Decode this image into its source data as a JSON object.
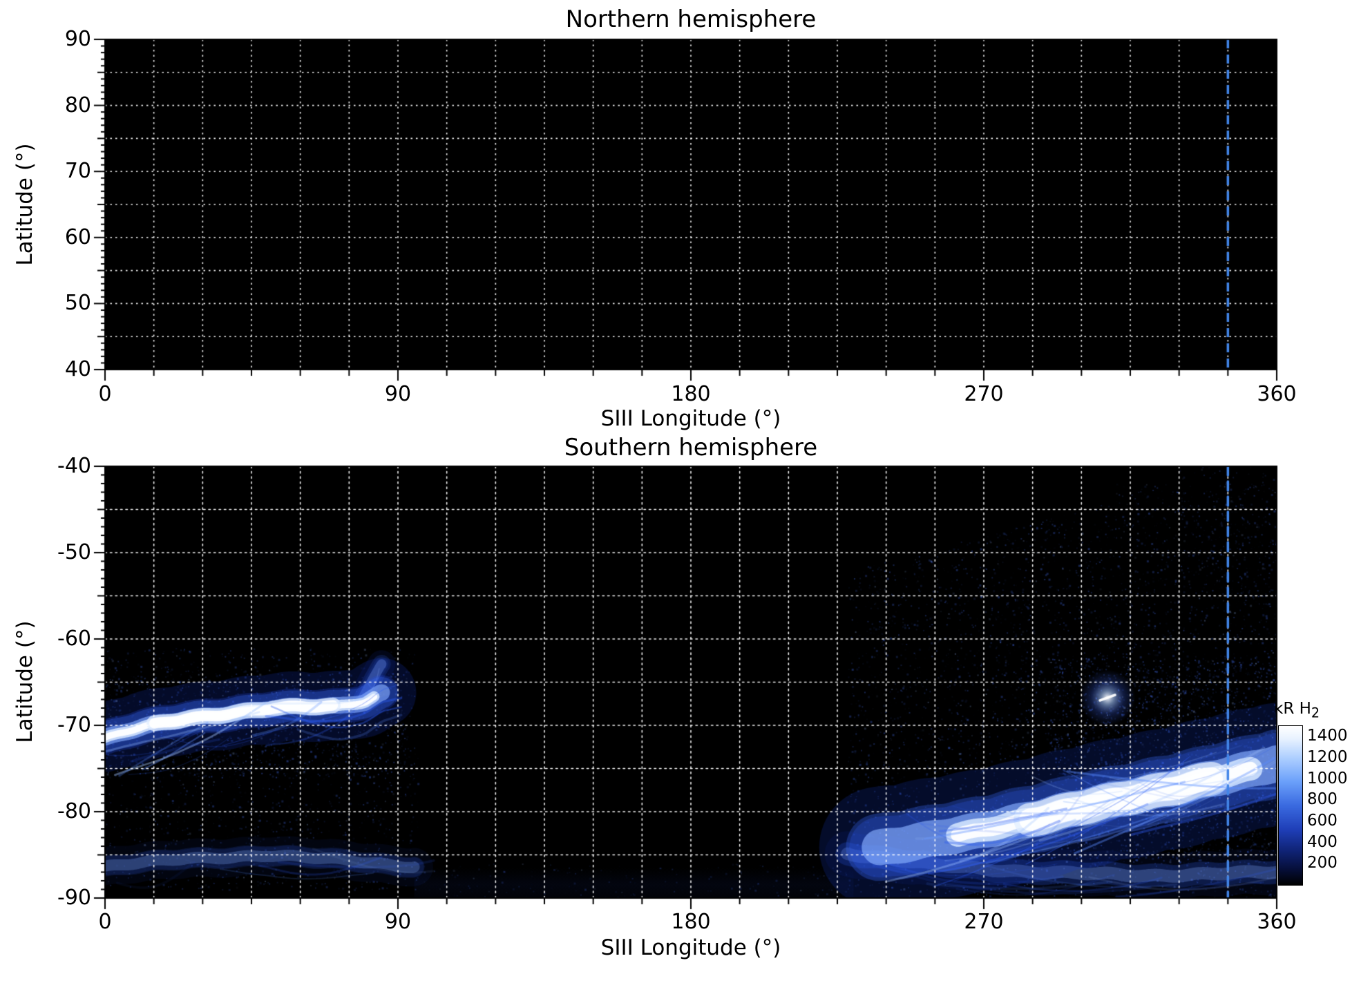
{
  "figure": {
    "background": "#ffffff",
    "plot_background": "#000000",
    "grid_color": "#ffffff",
    "reference_line_color": "#4285e8"
  },
  "chart_data": [
    {
      "type": "heatmap",
      "panel": "northern",
      "title": "Northern hemisphere",
      "xlabel": "SIII Longitude (°)",
      "ylabel": "Latitude (°)",
      "xlim": [
        0,
        360
      ],
      "ylim_top_to_bottom": [
        90,
        40
      ],
      "xticks": [
        0,
        90,
        180,
        270,
        360
      ],
      "yticks": [
        90,
        80,
        70,
        60,
        50,
        40
      ],
      "grid": {
        "x_step_deg": 15,
        "y_step_deg": 5,
        "style": "dotted",
        "minor_tick_deg_x": 15,
        "minor_tick_deg_y": 1
      },
      "reference_line_x": 345,
      "features": [],
      "noise_regions": []
    },
    {
      "type": "heatmap",
      "panel": "southern",
      "title": "Southern hemisphere",
      "xlabel": "SIII Longitude (°)",
      "ylabel": "Latitude (°)",
      "xlim": [
        0,
        360
      ],
      "ylim_top_to_bottom": [
        -40,
        -90
      ],
      "xticks": [
        0,
        90,
        180,
        270,
        360
      ],
      "yticks": [
        -40,
        -50,
        -60,
        -70,
        -80,
        -90
      ],
      "grid": {
        "x_step_deg": 15,
        "y_step_deg": 5,
        "style": "dotted",
        "minor_tick_deg_x": 15,
        "minor_tick_deg_y": 1
      },
      "reference_line_x": 345,
      "colorbar": {
        "label": "kR H",
        "label_sub": "2",
        "unit": "kR",
        "vmin": 0,
        "vmax": 1500,
        "ticks": [
          1400,
          1200,
          1000,
          800,
          600,
          400,
          200
        ]
      },
      "features": [
        {
          "name": "dusk-auroral-arc",
          "kind": "arc",
          "peak_kR": 1450,
          "width_deg": 1.2,
          "halo_deg": 4.0,
          "lons": [
            0,
            6,
            12,
            25,
            40,
            52,
            62,
            72,
            80,
            85
          ],
          "lats": [
            -71.5,
            -70.8,
            -70.2,
            -69.2,
            -68.5,
            -68.0,
            -67.9,
            -67.8,
            -67.2,
            -66.2
          ],
          "core_lon_range": [
            0,
            83
          ],
          "core_boost_range": [
            15,
            70
          ],
          "filaments": 16,
          "filament_spread_deg": 3.5,
          "filament_bias_deg": 2.2
        },
        {
          "name": "dusk-arc-tip-streak",
          "kind": "arc",
          "peak_kR": 700,
          "width_deg": 0.7,
          "halo_deg": 1.6,
          "lons": [
            79,
            82,
            85
          ],
          "lats": [
            -66.8,
            -64.8,
            -62.9
          ],
          "filaments": 2,
          "filament_spread_deg": 1.0,
          "filament_bias_deg": 0
        },
        {
          "name": "dawn-main-emission",
          "kind": "arc",
          "peak_kR": 1500,
          "width_deg": 2.6,
          "halo_deg": 7.0,
          "lons": [
            238,
            252,
            266,
            280,
            295,
            310,
            325,
            340,
            352,
            360
          ],
          "lats": [
            -84.2,
            -83.4,
            -82.4,
            -81.2,
            -80.0,
            -78.7,
            -77.4,
            -76.2,
            -75.2,
            -74.4
          ],
          "core_lon_range": [
            262,
            352
          ],
          "core_boost_range": [
            284,
            340
          ],
          "filaments": 36,
          "filament_spread_deg": 5.5,
          "filament_bias_deg": 0.5
        },
        {
          "name": "isolated-polar-spot",
          "kind": "spot",
          "peak_kR": 1100,
          "lon": 308,
          "lat": -66.8,
          "size_deg": 1.8
        },
        {
          "name": "low-latitude-arc-west",
          "kind": "arc",
          "peak_kR": 450,
          "width_deg": 0.8,
          "halo_deg": 2.2,
          "lons": [
            0,
            25,
            50,
            75,
            95
          ],
          "lats": [
            -86.4,
            -85.4,
            -85.1,
            -85.6,
            -86.4
          ],
          "filaments": 6,
          "filament_spread_deg": 1.8,
          "filament_bias_deg": 0.5
        },
        {
          "name": "low-latitude-arcs-east",
          "kind": "arc",
          "peak_kR": 500,
          "width_deg": 0.9,
          "halo_deg": 2.6,
          "lons": [
            228,
            255,
            285,
            320,
            360
          ],
          "lats": [
            -84.8,
            -86.2,
            -87.0,
            -87.4,
            -87.0
          ],
          "filaments": 10,
          "filament_spread_deg": 2.2,
          "filament_bias_deg": 0.5
        },
        {
          "name": "bottom-faint-band-central",
          "kind": "band",
          "peak_kR": 200,
          "lon_range": [
            95,
            230
          ],
          "lat_range": [
            -90,
            -86.5
          ]
        }
      ],
      "noise_regions": [
        {
          "lon_range": [
            228,
            360
          ],
          "lat_range": [
            -90,
            -42
          ],
          "level_kR": 120
        },
        {
          "lon_range": [
            290,
            360
          ],
          "lat_range": [
            -86,
            -62
          ],
          "level_kR": 180
        },
        {
          "lon_range": [
            330,
            360
          ],
          "lat_range": [
            -55,
            -40
          ],
          "level_kR": 60
        },
        {
          "lon_range": [
            0,
            96
          ],
          "lat_range": [
            -89,
            -61
          ],
          "level_kR": 100
        },
        {
          "lon_range": [
            0,
            92
          ],
          "lat_range": [
            -76,
            -64
          ],
          "level_kR": 150
        },
        {
          "lon_range": [
            96,
            228
          ],
          "lat_range": [
            -90,
            -86
          ],
          "level_kR": 60
        }
      ]
    }
  ]
}
